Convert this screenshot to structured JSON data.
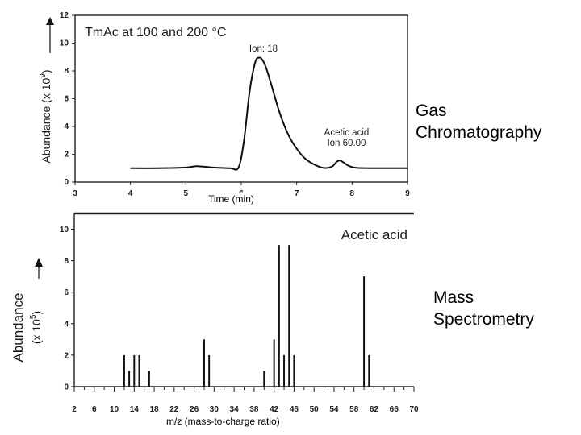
{
  "side_labels": {
    "gc": [
      "Gas",
      "Chromatography"
    ],
    "ms": [
      "Mass",
      "Spectrometry"
    ]
  },
  "chart_data": [
    {
      "type": "line",
      "title": "TmAc at 100 and 200 °C",
      "xlabel": "Time (min)",
      "ylabel": "Abundance (x 10",
      "ylabel_exponent": "9",
      "ylabel_suffix": ")",
      "xlim": [
        3,
        9
      ],
      "ylim": [
        0,
        12
      ],
      "x_ticks": [
        3,
        4,
        5,
        6,
        7,
        8,
        9
      ],
      "y_ticks": [
        0,
        2,
        4,
        6,
        8,
        10,
        12
      ],
      "grid": false,
      "series": [
        {
          "x": [
            4.0,
            4.5,
            5.0,
            5.2,
            5.5,
            5.8,
            5.95,
            6.05,
            6.15,
            6.25,
            6.32,
            6.38,
            6.45,
            6.55,
            6.7,
            6.85,
            7.0,
            7.15,
            7.3,
            7.45,
            7.55,
            7.65,
            7.72,
            7.78,
            7.85,
            7.95,
            8.1,
            8.5,
            9.0
          ],
          "y": [
            1.0,
            1.0,
            1.05,
            1.15,
            1.05,
            1.0,
            1.05,
            3.0,
            6.5,
            8.6,
            8.95,
            8.8,
            8.2,
            6.9,
            4.9,
            3.4,
            2.4,
            1.7,
            1.3,
            1.05,
            1.02,
            1.15,
            1.45,
            1.55,
            1.4,
            1.15,
            1.02,
            1.0,
            1.0
          ]
        }
      ],
      "annotations": [
        {
          "lines": [
            "Ion: 18"
          ],
          "x": 6.4,
          "y": 9.4
        },
        {
          "lines": [
            "Acetic acid",
            "Ion 60.00"
          ],
          "x": 7.9,
          "y": 2.6
        }
      ]
    },
    {
      "type": "bar",
      "title": "Acetic acid",
      "xlabel": "m/z (mass-to-charge ratio)",
      "ylabel": "Abundance",
      "ylabel2": "(x 10",
      "ylabel2_exponent": "5",
      "ylabel2_suffix": ")",
      "xlim": [
        2,
        70
      ],
      "ylim": [
        0,
        11
      ],
      "x_ticks": [
        2,
        6,
        10,
        14,
        18,
        22,
        26,
        30,
        34,
        38,
        42,
        46,
        50,
        54,
        58,
        62,
        66,
        70
      ],
      "y_ticks": [
        0,
        2,
        4,
        6,
        8,
        10
      ],
      "grid": false,
      "peaks": [
        {
          "mz": 12,
          "abundance": 2
        },
        {
          "mz": 13,
          "abundance": 1
        },
        {
          "mz": 14,
          "abundance": 2
        },
        {
          "mz": 15,
          "abundance": 2
        },
        {
          "mz": 17,
          "abundance": 1
        },
        {
          "mz": 28,
          "abundance": 3
        },
        {
          "mz": 29,
          "abundance": 2
        },
        {
          "mz": 40,
          "abundance": 1
        },
        {
          "mz": 42,
          "abundance": 3
        },
        {
          "mz": 43,
          "abundance": 9
        },
        {
          "mz": 44,
          "abundance": 2
        },
        {
          "mz": 45,
          "abundance": 9
        },
        {
          "mz": 46,
          "abundance": 2
        },
        {
          "mz": 60,
          "abundance": 7
        },
        {
          "mz": 61,
          "abundance": 2
        }
      ]
    }
  ]
}
